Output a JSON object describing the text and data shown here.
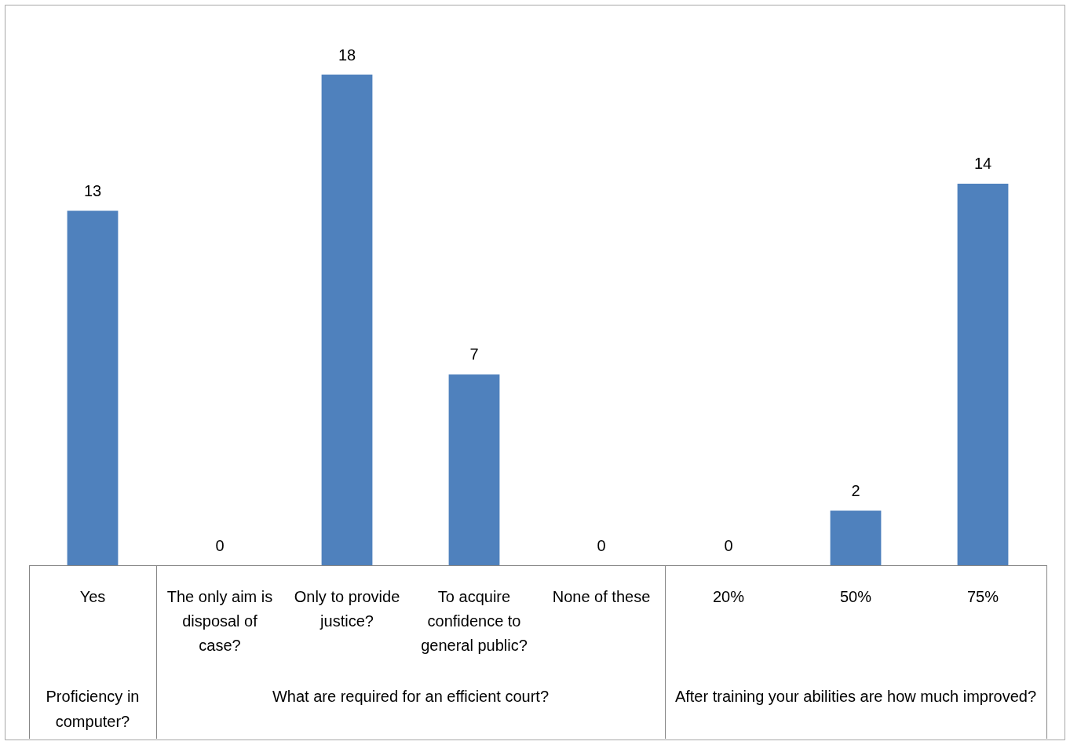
{
  "chart_data": {
    "type": "bar",
    "categories": [
      "Yes",
      "The only aim is disposal of case?",
      "Only to provide justice?",
      "To acquire confidence to general public?",
      "None of these",
      "20%",
      "50%",
      "75%"
    ],
    "values": [
      13,
      0,
      18,
      7,
      0,
      0,
      2,
      14
    ],
    "color": "#4f81bd",
    "data_labels": true,
    "grid": false,
    "legend": false,
    "tick_labels": "x",
    "annotations": [
      "Proficiency in computer?",
      "What are required for an efficient court?",
      "After training your abilities are how much improved?"
    ]
  }
}
